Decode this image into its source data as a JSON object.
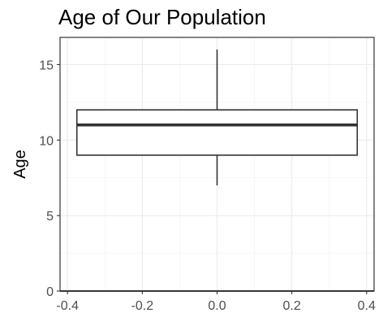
{
  "chart_data": {
    "type": "boxplot",
    "title": "Age of Our Population",
    "xlabel": "",
    "ylabel": "Age",
    "xlim": [
      -0.42,
      0.42
    ],
    "ylim": [
      0,
      16.8
    ],
    "x_ticks": [
      -0.4,
      -0.2,
      0.0,
      0.2,
      0.4
    ],
    "x_tick_labels": [
      "-0.4",
      "-0.2",
      "0.0",
      "0.2",
      "0.4"
    ],
    "y_ticks": [
      0,
      5,
      10,
      15
    ],
    "y_tick_labels": [
      "0",
      "5",
      "10",
      "15"
    ],
    "grid": true,
    "box": {
      "x_min": -0.375,
      "x_max": 0.375,
      "whisker_low": 7,
      "q1": 9,
      "median": 11,
      "q3": 12,
      "whisker_high": 16
    },
    "reference_line": {
      "y": 0
    },
    "colors": {
      "box_stroke": "#333333",
      "box_fill": "#ffffff",
      "grid_major": "#ebebeb",
      "grid_minor": "#f5f5f5",
      "panel_border": "#333333",
      "tick_label": "#4d4d4d"
    }
  }
}
